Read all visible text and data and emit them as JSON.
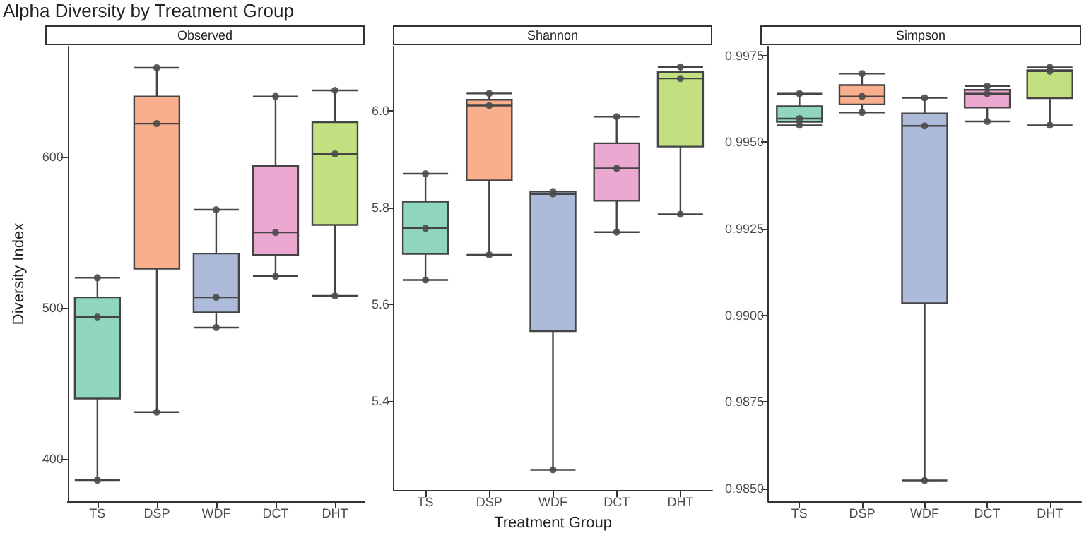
{
  "chart_data": [
    {
      "type": "box",
      "title": "Alpha Diversity by Treatment Group",
      "subtitle": "Observed",
      "ylabel": "Diversity Index",
      "categories": [
        "TS",
        "DSP",
        "WDF",
        "DCT",
        "DHT"
      ],
      "ylim": [
        372,
        673
      ],
      "yticks": [
        400,
        500,
        600
      ],
      "series": [
        {
          "colors": [
            "#8fd5bf",
            "#f9ae8e",
            "#adbad9",
            "#eba9d1",
            "#c2e07f"
          ],
          "boxes": [
            {
              "low": 386,
              "q1": 440,
              "median": 494,
              "q3": 507,
              "high": 520
            },
            {
              "low": 431,
              "q1": 526,
              "median": 622,
              "q3": 640,
              "high": 659
            },
            {
              "low": 487,
              "q1": 497,
              "median": 507,
              "q3": 536,
              "high": 565
            },
            {
              "low": 521,
              "q1": 535,
              "median": 550,
              "q3": 594,
              "high": 640
            },
            {
              "low": 508,
              "q1": 555,
              "median": 602,
              "q3": 623,
              "high": 644
            }
          ]
        },
        {
          "type": "scatter",
          "color": "#4d4d4d",
          "marker": "circle",
          "x": [
            "TS",
            "TS",
            "TS",
            "DSP",
            "DSP",
            "DSP",
            "WDF",
            "WDF",
            "WDF",
            "DCT",
            "DCT",
            "DCT",
            "DHT",
            "DHT",
            "DHT"
          ],
          "values": [
            386,
            494,
            520,
            659,
            622,
            431,
            565,
            507,
            487,
            640,
            550,
            521,
            644,
            602,
            508
          ]
        }
      ]
    },
    {
      "type": "box",
      "subtitle": "Shannon",
      "xlabel": "Treatment Group",
      "categories": [
        "TS",
        "DSP",
        "WDF",
        "DCT",
        "DHT"
      ],
      "ylim": [
        5.215,
        6.133
      ],
      "yticks": [
        5.4,
        5.6,
        5.8,
        {
          "value": 6,
          "label": "6.0"
        }
      ],
      "series": [
        {
          "colors": [
            "#8fd5bf",
            "#f9ae8e",
            "#adbad9",
            "#eba9d1",
            "#c2e07f"
          ],
          "boxes": [
            {
              "low": 5.65,
              "q1": 5.704,
              "median": 5.757,
              "q3": 5.812,
              "high": 5.87
            },
            {
              "low": 5.702,
              "q1": 5.856,
              "median": 6.011,
              "q3": 6.023,
              "high": 6.036
            },
            {
              "low": 5.257,
              "q1": 5.544,
              "median": 5.828,
              "q3": 5.833,
              "high": 5.833
            },
            {
              "low": 5.749,
              "q1": 5.814,
              "median": 5.881,
              "q3": 5.933,
              "high": 5.988
            },
            {
              "low": 5.786,
              "q1": 5.926,
              "median": 6.067,
              "q3": 6.08,
              "high": 6.091
            }
          ]
        },
        {
          "type": "scatter",
          "color": "#4d4d4d",
          "marker": "circle",
          "x": [
            "TS",
            "TS",
            "TS",
            "DSP",
            "DSP",
            "DSP",
            "WDF",
            "WDF",
            "WDF",
            "DCT",
            "DCT",
            "DCT",
            "DHT",
            "DHT",
            "DHT"
          ],
          "values": [
            5.87,
            5.757,
            5.65,
            6.036,
            6.011,
            5.702,
            5.833,
            5.828,
            5.257,
            5.988,
            5.881,
            5.749,
            6.091,
            6.067,
            5.786
          ]
        }
      ]
    },
    {
      "type": "box",
      "subtitle": "Simpson",
      "categories": [
        "TS",
        "DSP",
        "WDF",
        "DCT",
        "DHT"
      ],
      "ylim": [
        0.98463,
        0.99776
      ],
      "yticks": [
        {
          "value": 0.985,
          "label": "0.9850"
        },
        {
          "value": 0.9875,
          "label": "0.9875"
        },
        {
          "value": 0.99,
          "label": "0.9900"
        },
        {
          "value": 0.9925,
          "label": "0.9925"
        },
        {
          "value": 0.995,
          "label": "0.9950"
        },
        {
          "value": 0.9975,
          "label": "0.9975"
        }
      ],
      "series": [
        {
          "colors": [
            "#8fd5bf",
            "#f9ae8e",
            "#adbad9",
            "#eba9d1",
            "#c2e07f"
          ],
          "boxes": [
            {
              "low": 0.99549,
              "q1": 0.99559,
              "median": 0.99568,
              "q3": 0.99604,
              "high": 0.9964
            },
            {
              "low": 0.99586,
              "q1": 0.99609,
              "median": 0.99632,
              "q3": 0.99665,
              "high": 0.99698
            },
            {
              "low": 0.98523,
              "q1": 0.99035,
              "median": 0.99547,
              "q3": 0.99583,
              "high": 0.99628
            },
            {
              "low": 0.9956,
              "q1": 0.996,
              "median": 0.9964,
              "q3": 0.99651,
              "high": 0.99662
            },
            {
              "low": 0.99549,
              "q1": 0.99627,
              "median": 0.99705,
              "q3": 0.99708,
              "high": 0.99716
            }
          ]
        },
        {
          "type": "scatter",
          "color": "#4d4d4d",
          "marker": "circle",
          "x": [
            "TS",
            "TS",
            "TS",
            "DSP",
            "DSP",
            "DSP",
            "WDF",
            "WDF",
            "WDF",
            "DCT",
            "DCT",
            "DCT",
            "DHT",
            "DHT",
            "DHT"
          ],
          "values": [
            0.9964,
            0.99568,
            0.99549,
            0.99698,
            0.99632,
            0.99586,
            0.99628,
            0.99547,
            0.98523,
            0.99662,
            0.9964,
            0.9956,
            0.99716,
            0.99705,
            0.99549
          ]
        }
      ]
    }
  ]
}
